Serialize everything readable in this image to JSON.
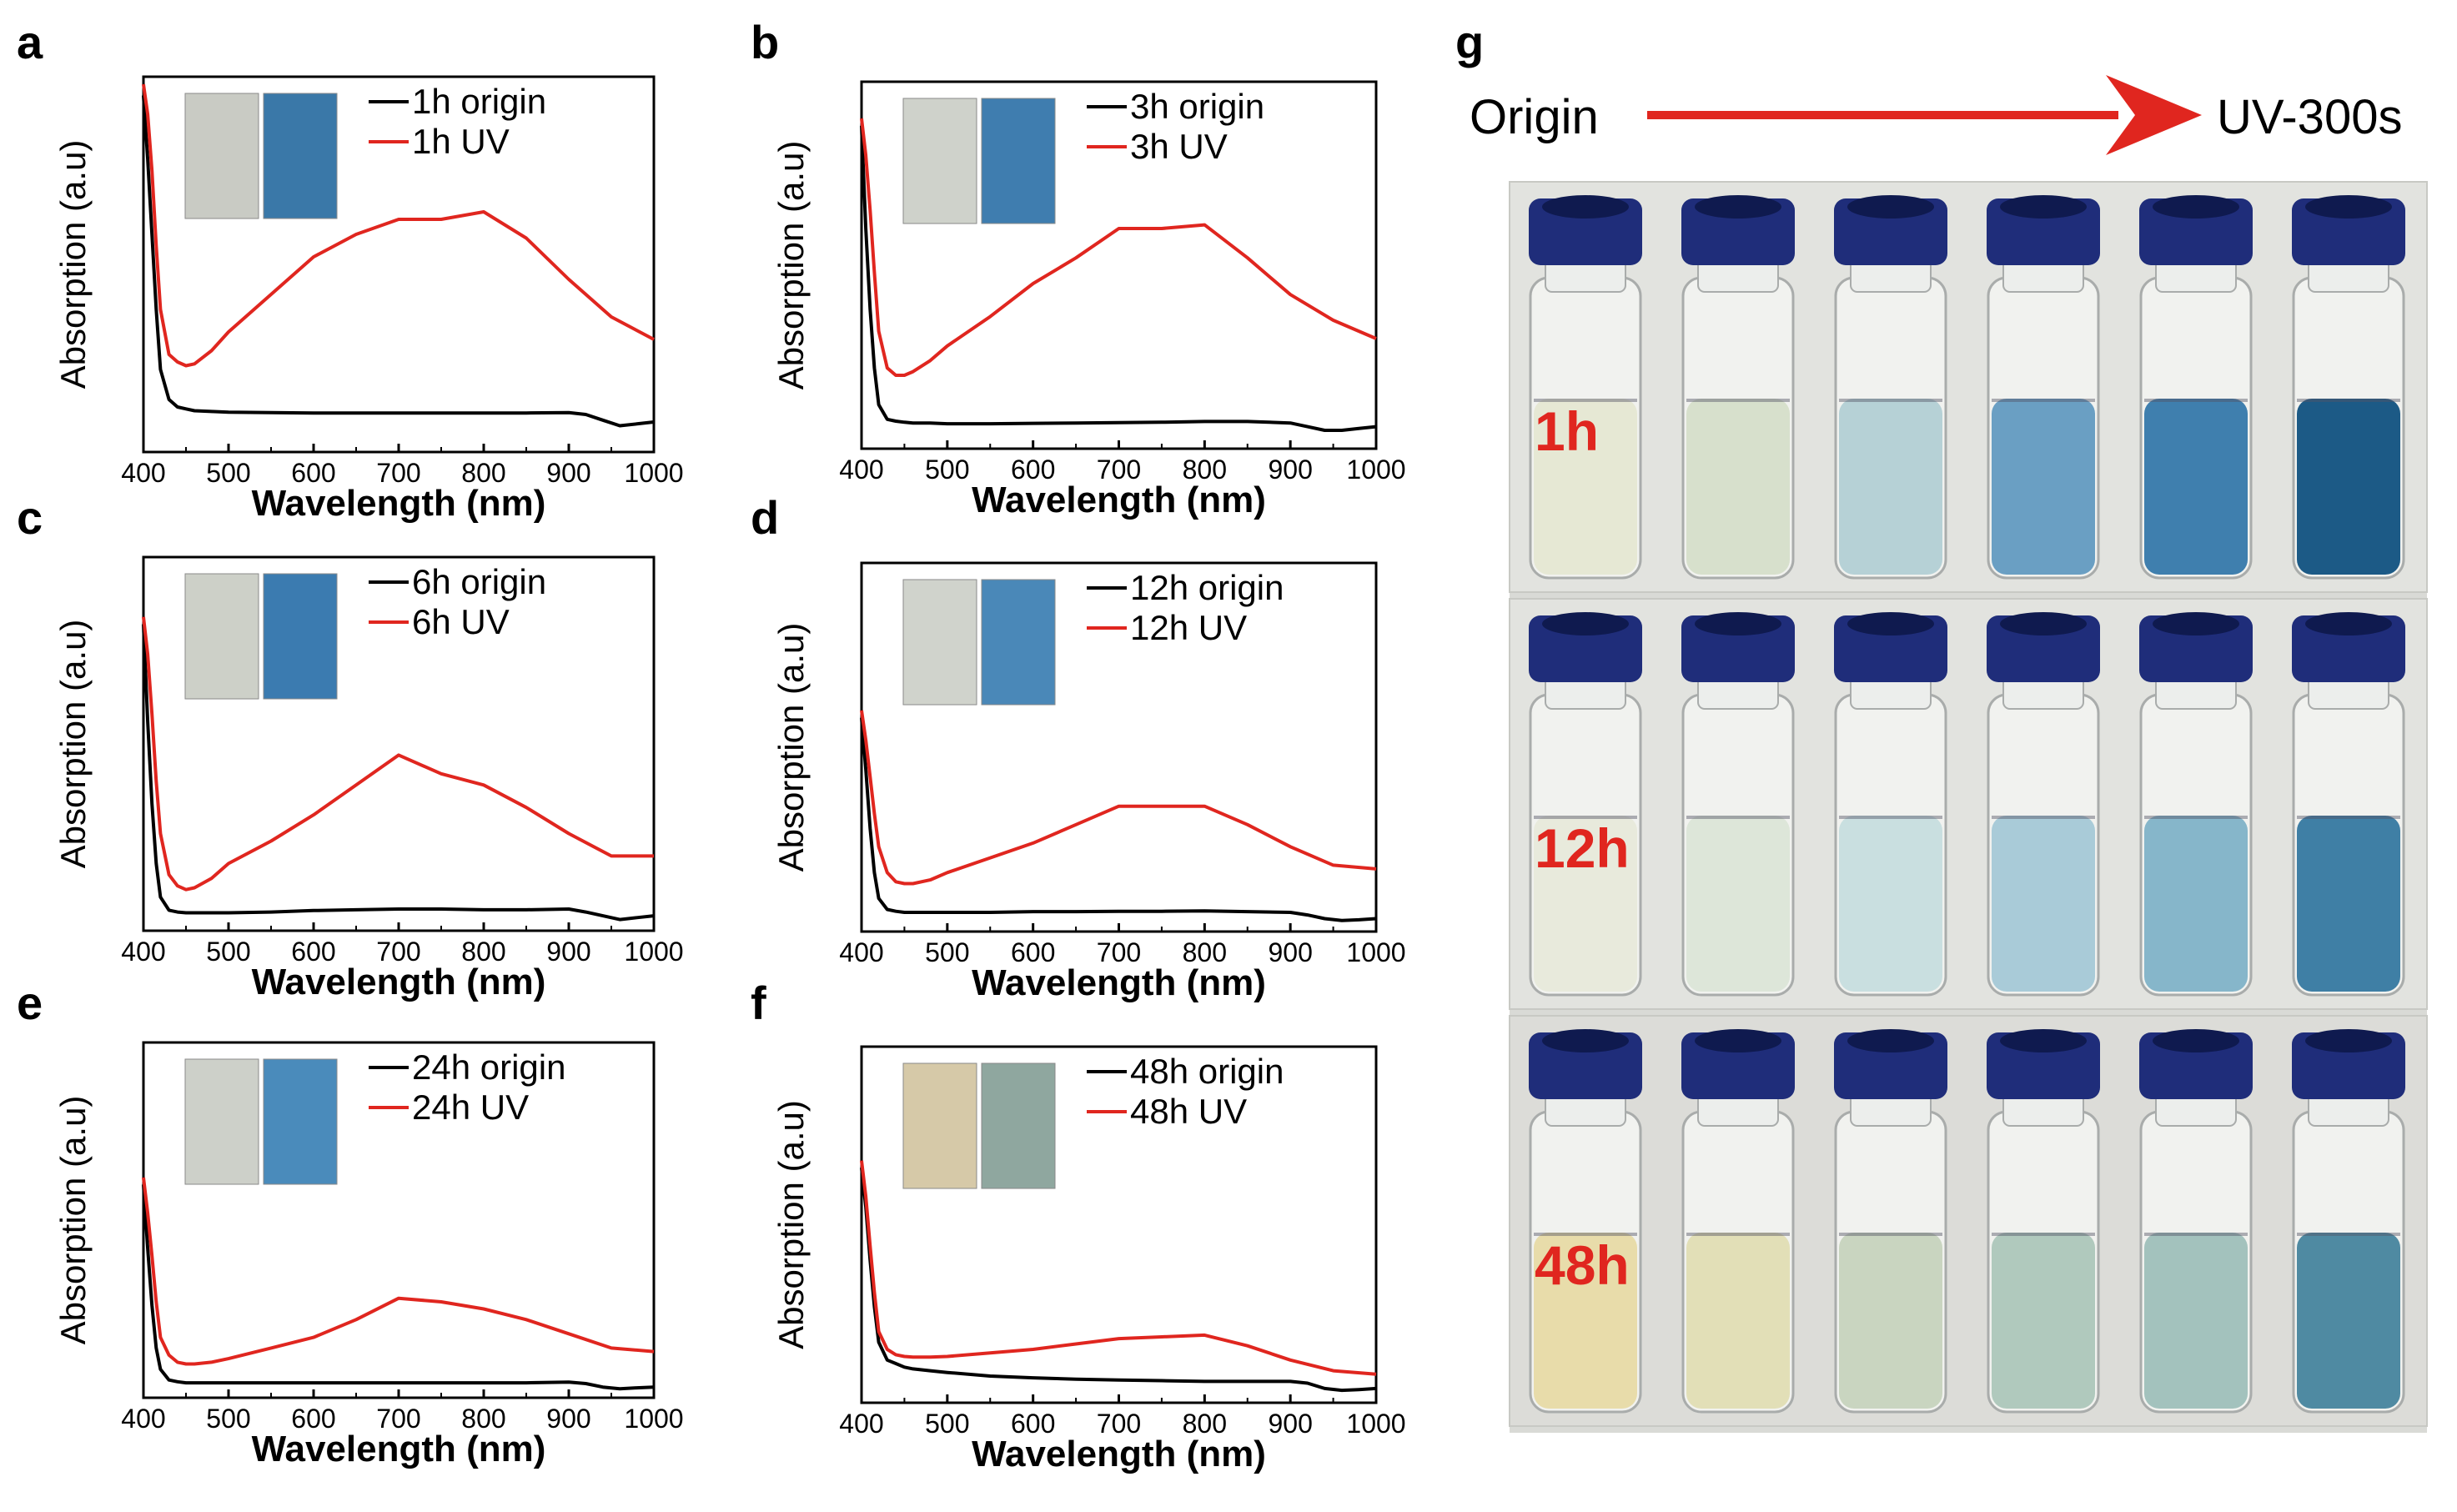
{
  "chart_data": [
    {
      "type": "line",
      "panel": "a",
      "xlabel": "Wavelength (nm)",
      "ylabel": "Absorption (a.u)",
      "xlim": [
        400,
        1000
      ],
      "ylim": [
        0,
        1
      ],
      "xticks": [
        "400",
        "500",
        "600",
        "700",
        "800",
        "900",
        "1000"
      ],
      "legend_position": "top-left",
      "inset_colors": [
        "#c9cbc4",
        "#3a78a8"
      ],
      "series": [
        {
          "name": "1h origin",
          "color": "#000000",
          "x": [
            400,
            405,
            410,
            415,
            420,
            430,
            440,
            450,
            460,
            480,
            500,
            550,
            600,
            650,
            700,
            750,
            800,
            850,
            900,
            920,
            940,
            960,
            980,
            1000
          ],
          "y": [
            0.95,
            0.78,
            0.58,
            0.38,
            0.22,
            0.14,
            0.12,
            0.115,
            0.11,
            0.108,
            0.106,
            0.105,
            0.104,
            0.104,
            0.104,
            0.104,
            0.104,
            0.104,
            0.105,
            0.1,
            0.085,
            0.07,
            0.075,
            0.08
          ]
        },
        {
          "name": "1h UV",
          "color": "#e0261f",
          "x": [
            400,
            405,
            410,
            415,
            420,
            430,
            440,
            450,
            460,
            480,
            500,
            550,
            600,
            650,
            700,
            750,
            800,
            850,
            900,
            950,
            1000
          ],
          "y": [
            0.98,
            0.9,
            0.75,
            0.55,
            0.38,
            0.26,
            0.24,
            0.23,
            0.235,
            0.27,
            0.32,
            0.42,
            0.52,
            0.58,
            0.62,
            0.62,
            0.64,
            0.57,
            0.46,
            0.36,
            0.3
          ]
        }
      ]
    },
    {
      "type": "line",
      "panel": "b",
      "xlabel": "Wavelength (nm)",
      "ylabel": "Absorption (a.u)",
      "xlim": [
        400,
        1000
      ],
      "ylim": [
        0,
        1
      ],
      "xticks": [
        "400",
        "500",
        "600",
        "700",
        "800",
        "900",
        "1000"
      ],
      "legend_position": "top-left",
      "inset_colors": [
        "#cfd2cb",
        "#3f7daf"
      ],
      "series": [
        {
          "name": "3h origin",
          "color": "#000000",
          "x": [
            400,
            405,
            410,
            415,
            420,
            430,
            440,
            450,
            460,
            480,
            500,
            550,
            600,
            650,
            700,
            750,
            800,
            850,
            900,
            920,
            940,
            960,
            980,
            1000
          ],
          "y": [
            0.88,
            0.6,
            0.38,
            0.22,
            0.12,
            0.08,
            0.075,
            0.072,
            0.07,
            0.07,
            0.068,
            0.068,
            0.069,
            0.07,
            0.071,
            0.072,
            0.074,
            0.074,
            0.07,
            0.06,
            0.05,
            0.05,
            0.055,
            0.06
          ]
        },
        {
          "name": "3h UV",
          "color": "#e0261f",
          "x": [
            400,
            405,
            410,
            415,
            420,
            430,
            440,
            450,
            460,
            480,
            500,
            550,
            600,
            650,
            700,
            720,
            750,
            800,
            850,
            900,
            950,
            1000
          ],
          "y": [
            0.9,
            0.8,
            0.65,
            0.48,
            0.32,
            0.22,
            0.2,
            0.2,
            0.21,
            0.24,
            0.28,
            0.36,
            0.45,
            0.52,
            0.6,
            0.6,
            0.6,
            0.61,
            0.52,
            0.42,
            0.35,
            0.3
          ]
        }
      ]
    },
    {
      "type": "line",
      "panel": "c",
      "xlabel": "Wavelength (nm)",
      "ylabel": "Absorption (a.u)",
      "xlim": [
        400,
        1000
      ],
      "ylim": [
        0,
        1
      ],
      "xticks": [
        "400",
        "500",
        "600",
        "700",
        "800",
        "900",
        "1000"
      ],
      "legend_position": "top-left",
      "inset_colors": [
        "#cdd0c8",
        "#3b7bb0"
      ],
      "series": [
        {
          "name": "6h origin",
          "color": "#000000",
          "x": [
            400,
            405,
            410,
            415,
            420,
            430,
            440,
            450,
            460,
            480,
            500,
            550,
            600,
            650,
            700,
            750,
            800,
            850,
            900,
            920,
            940,
            960,
            980,
            1000
          ],
          "y": [
            0.82,
            0.56,
            0.34,
            0.18,
            0.09,
            0.055,
            0.05,
            0.048,
            0.048,
            0.048,
            0.048,
            0.05,
            0.054,
            0.056,
            0.058,
            0.058,
            0.056,
            0.056,
            0.058,
            0.05,
            0.04,
            0.03,
            0.035,
            0.04
          ]
        },
        {
          "name": "6h UV",
          "color": "#e0261f",
          "x": [
            400,
            405,
            410,
            415,
            420,
            430,
            440,
            450,
            460,
            480,
            500,
            550,
            600,
            650,
            700,
            750,
            800,
            850,
            900,
            950,
            1000
          ],
          "y": [
            0.84,
            0.74,
            0.58,
            0.4,
            0.26,
            0.15,
            0.12,
            0.11,
            0.115,
            0.14,
            0.18,
            0.24,
            0.31,
            0.39,
            0.47,
            0.42,
            0.39,
            0.33,
            0.26,
            0.2,
            0.2
          ]
        }
      ]
    },
    {
      "type": "line",
      "panel": "d",
      "xlabel": "Wavelength (nm)",
      "ylabel": "Absorption (a.u)",
      "xlim": [
        400,
        1000
      ],
      "ylim": [
        0,
        1
      ],
      "xticks": [
        "400",
        "500",
        "600",
        "700",
        "800",
        "900",
        "1000"
      ],
      "legend_position": "top-left",
      "inset_colors": [
        "#d0d3cc",
        "#4a88b8"
      ],
      "series": [
        {
          "name": "12h origin",
          "color": "#000000",
          "x": [
            400,
            405,
            410,
            415,
            420,
            430,
            440,
            450,
            460,
            480,
            500,
            550,
            600,
            650,
            700,
            750,
            800,
            850,
            900,
            920,
            940,
            960,
            980,
            1000
          ],
          "y": [
            0.58,
            0.44,
            0.28,
            0.16,
            0.09,
            0.06,
            0.055,
            0.052,
            0.052,
            0.052,
            0.052,
            0.052,
            0.054,
            0.054,
            0.055,
            0.055,
            0.056,
            0.054,
            0.052,
            0.045,
            0.035,
            0.03,
            0.032,
            0.035
          ]
        },
        {
          "name": "12h UV",
          "color": "#e0261f",
          "x": [
            400,
            405,
            410,
            415,
            420,
            430,
            440,
            450,
            460,
            480,
            500,
            550,
            600,
            650,
            700,
            750,
            800,
            850,
            900,
            950,
            1000
          ],
          "y": [
            0.6,
            0.52,
            0.42,
            0.32,
            0.23,
            0.16,
            0.135,
            0.13,
            0.13,
            0.14,
            0.16,
            0.2,
            0.24,
            0.29,
            0.34,
            0.34,
            0.34,
            0.29,
            0.23,
            0.18,
            0.17
          ]
        }
      ]
    },
    {
      "type": "line",
      "panel": "e",
      "xlabel": "Wavelength (nm)",
      "ylabel": "Absorption (a.u)",
      "xlim": [
        400,
        1000
      ],
      "ylim": [
        0,
        1
      ],
      "xticks": [
        "400",
        "500",
        "600",
        "700",
        "800",
        "900",
        "1000"
      ],
      "legend_position": "top-left",
      "inset_colors": [
        "#cdd0c9",
        "#4a8bbb"
      ],
      "series": [
        {
          "name": "24h origin",
          "color": "#000000",
          "x": [
            400,
            405,
            410,
            415,
            420,
            430,
            440,
            450,
            460,
            480,
            500,
            550,
            600,
            650,
            700,
            750,
            800,
            850,
            900,
            920,
            940,
            960,
            980,
            1000
          ],
          "y": [
            0.6,
            0.42,
            0.26,
            0.14,
            0.08,
            0.05,
            0.045,
            0.042,
            0.042,
            0.042,
            0.042,
            0.042,
            0.042,
            0.042,
            0.042,
            0.042,
            0.042,
            0.042,
            0.044,
            0.04,
            0.03,
            0.025,
            0.028,
            0.03
          ]
        },
        {
          "name": "24h UV",
          "color": "#e0261f",
          "x": [
            400,
            405,
            410,
            415,
            420,
            430,
            440,
            450,
            460,
            480,
            500,
            550,
            600,
            650,
            700,
            750,
            800,
            850,
            900,
            950,
            1000
          ],
          "y": [
            0.62,
            0.52,
            0.4,
            0.27,
            0.17,
            0.12,
            0.1,
            0.095,
            0.095,
            0.1,
            0.11,
            0.14,
            0.17,
            0.22,
            0.28,
            0.27,
            0.25,
            0.22,
            0.18,
            0.14,
            0.13
          ]
        }
      ]
    },
    {
      "type": "line",
      "panel": "f",
      "xlabel": "Wavelength (nm)",
      "ylabel": "Absorption (a.u)",
      "xlim": [
        400,
        1000
      ],
      "ylim": [
        0,
        1
      ],
      "xticks": [
        "400",
        "500",
        "600",
        "700",
        "800",
        "900",
        "1000"
      ],
      "legend_position": "top-left",
      "inset_colors": [
        "#d6c9a8",
        "#8fa79f"
      ],
      "series": [
        {
          "name": "48h origin",
          "color": "#000000",
          "x": [
            400,
            405,
            410,
            415,
            420,
            430,
            440,
            450,
            460,
            480,
            500,
            550,
            600,
            650,
            700,
            750,
            800,
            850,
            900,
            920,
            940,
            960,
            980,
            1000
          ],
          "y": [
            0.66,
            0.55,
            0.4,
            0.27,
            0.17,
            0.12,
            0.11,
            0.1,
            0.095,
            0.09,
            0.085,
            0.075,
            0.07,
            0.066,
            0.064,
            0.062,
            0.06,
            0.06,
            0.06,
            0.055,
            0.04,
            0.035,
            0.037,
            0.04
          ]
        },
        {
          "name": "48h UV",
          "color": "#e0261f",
          "x": [
            400,
            405,
            410,
            415,
            420,
            430,
            440,
            450,
            460,
            480,
            500,
            550,
            600,
            650,
            700,
            750,
            800,
            850,
            900,
            950,
            1000
          ],
          "y": [
            0.68,
            0.58,
            0.44,
            0.31,
            0.2,
            0.15,
            0.135,
            0.13,
            0.128,
            0.128,
            0.13,
            0.14,
            0.15,
            0.165,
            0.18,
            0.185,
            0.19,
            0.16,
            0.12,
            0.09,
            0.08
          ]
        }
      ]
    }
  ],
  "panel_g": {
    "label": "g",
    "arrow_start_text": "Origin",
    "arrow_end_text": "UV-300s",
    "arrow_color": "#e0261f",
    "cap_color": "#1f2d7a",
    "rows": [
      {
        "label": "1h",
        "liquid_colors": [
          "#e6e8d4",
          "#d7e0cc",
          "#b6d1d6",
          "#6a9fc3",
          "#3f7fae",
          "#1c5a86"
        ]
      },
      {
        "label": "12h",
        "liquid_colors": [
          "#e8eadc",
          "#dde6d9",
          "#c9dfe0",
          "#a9cbd8",
          "#86b6ca",
          "#3f7fa5"
        ]
      },
      {
        "label": "48h",
        "liquid_colors": [
          "#e8dcaa",
          "#e2dfb7",
          "#c9d5c0",
          "#b0c9bd",
          "#a3c2bd",
          "#4f8aa2"
        ]
      }
    ]
  }
}
